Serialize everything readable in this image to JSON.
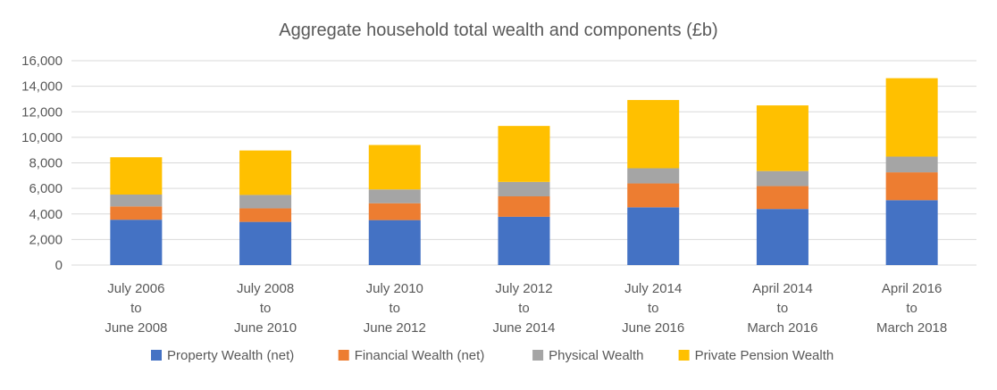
{
  "chart_data": {
    "type": "bar",
    "stacked": true,
    "title": "Aggregate household total wealth and components (£b)",
    "xlabel": "",
    "ylabel": "",
    "ylim": [
      0,
      16000
    ],
    "yticks": [
      "0",
      "2,000",
      "4,000",
      "6,000",
      "8,000",
      "10,000",
      "12,000",
      "14,000",
      "16,000"
    ],
    "grid": true,
    "legend_position": "bottom",
    "categories": [
      [
        "July 2006",
        "to",
        "June 2008"
      ],
      [
        "July 2008",
        "to",
        "June 2010"
      ],
      [
        "July 2010",
        "to",
        "June 2012"
      ],
      [
        "July 2012",
        "to",
        "June 2014"
      ],
      [
        "July 2014",
        "to",
        "June 2016"
      ],
      [
        "April 2014",
        "to",
        "March 2016"
      ],
      [
        "April 2016",
        "to",
        "March 2018"
      ]
    ],
    "series": [
      {
        "name": "Property Wealth (net)",
        "color": "#4472C4",
        "values": [
          3550,
          3380,
          3520,
          3780,
          4520,
          4390,
          5080
        ]
      },
      {
        "name": "Financial Wealth (net)",
        "color": "#ED7D31",
        "values": [
          1040,
          1060,
          1320,
          1600,
          1870,
          1790,
          2180
        ]
      },
      {
        "name": "Physical Wealth",
        "color": "#A5A5A5",
        "values": [
          930,
          1050,
          1080,
          1130,
          1190,
          1180,
          1230
        ]
      },
      {
        "name": "Private Pension Wealth",
        "color": "#FFC000",
        "values": [
          2920,
          3480,
          3480,
          4380,
          5340,
          5140,
          6140
        ]
      }
    ]
  }
}
